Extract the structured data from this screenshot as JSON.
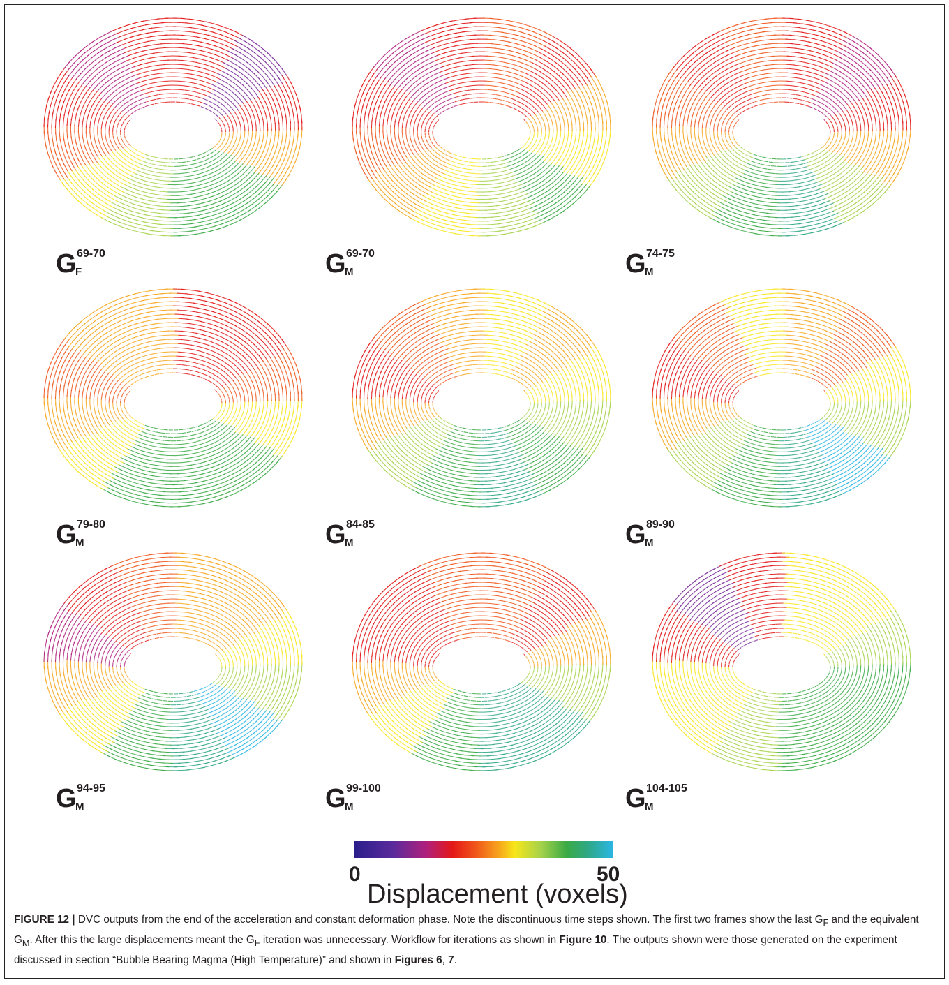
{
  "panels": [
    {
      "main": "G",
      "sub": "F",
      "sup": "69-70",
      "colors": [
        "#e41818",
        "#7a2a9a",
        "#e41818",
        "#f7a61c",
        "#3aaa45",
        "#3aaa45",
        "#a6d24a",
        "#f7e61a",
        "#f0561a",
        "#e41818",
        "#b0207c",
        "#e41818"
      ]
    },
    {
      "main": "G",
      "sub": "M",
      "sup": "69-70",
      "colors": [
        "#f0561a",
        "#e41818",
        "#f7a61c",
        "#f7e61a",
        "#3aaa45",
        "#a6d24a",
        "#f7e61a",
        "#f7a61c",
        "#f0561a",
        "#e41818",
        "#b0207c",
        "#e41818"
      ]
    },
    {
      "main": "G",
      "sub": "M",
      "sup": "74-75",
      "colors": [
        "#e41818",
        "#b0207c",
        "#e41818",
        "#f7a61c",
        "#a6d24a",
        "#2fa884",
        "#3aaa45",
        "#a6d24a",
        "#f7a61c",
        "#f0561a",
        "#e41818",
        "#f0561a"
      ]
    },
    {
      "main": "G",
      "sub": "M",
      "sup": "79-80",
      "colors": [
        "#e41818",
        "#e41818",
        "#f0561a",
        "#f7e61a",
        "#3aaa45",
        "#3aaa45",
        "#3aaa45",
        "#f7e61a",
        "#f7a61c",
        "#f0561a",
        "#f7a61c",
        "#f7a61c"
      ]
    },
    {
      "main": "G",
      "sub": "M",
      "sup": "84-85",
      "colors": [
        "#f7e61a",
        "#f7a61c",
        "#f7e61a",
        "#a6d24a",
        "#3aaa45",
        "#2fa884",
        "#3aaa45",
        "#a6d24a",
        "#f7a61c",
        "#e41818",
        "#f0561a",
        "#f7a61c"
      ]
    },
    {
      "main": "G",
      "sub": "M",
      "sup": "89-90",
      "colors": [
        "#f7a61c",
        "#f0561a",
        "#f7e61a",
        "#a6d24a",
        "#2ab6e6",
        "#2fa884",
        "#3aaa45",
        "#a6d24a",
        "#f7a61c",
        "#e41818",
        "#f0561a",
        "#f7e61a"
      ]
    },
    {
      "main": "G",
      "sub": "M",
      "sup": "94-95",
      "colors": [
        "#f7a61c",
        "#f7a61c",
        "#f7e61a",
        "#a6d24a",
        "#2ab6e6",
        "#2fa884",
        "#3aaa45",
        "#f7e61a",
        "#f7a61c",
        "#b0207c",
        "#e41818",
        "#f0561a"
      ]
    },
    {
      "main": "G",
      "sub": "M",
      "sup": "99-100",
      "colors": [
        "#f0561a",
        "#e41818",
        "#f7a61c",
        "#a6d24a",
        "#2fa884",
        "#2fa884",
        "#3aaa45",
        "#f7e61a",
        "#f7a61c",
        "#e41818",
        "#e41818",
        "#f0561a"
      ]
    },
    {
      "main": "G",
      "sub": "M",
      "sup": "104-105",
      "colors": [
        "#f7e61a",
        "#f7e61a",
        "#a6d24a",
        "#3aaa45",
        "#3aaa45",
        "#3aaa45",
        "#a6d24a",
        "#f7e61a",
        "#f7e61a",
        "#e41818",
        "#7a2a9a",
        "#e41818"
      ]
    }
  ],
  "colorbar": {
    "min_label": "0",
    "max_label": "50",
    "title": "Displacement (voxels)",
    "stops": [
      "#2a1e8a",
      "#5a2a9c",
      "#b0207c",
      "#e41818",
      "#f0561a",
      "#f7a61c",
      "#f7e61a",
      "#a6d24a",
      "#3aaa45",
      "#2fa884",
      "#2ab6e6"
    ],
    "range": [
      0,
      50
    ]
  },
  "caption": {
    "label": "FIGURE 12 |",
    "text_1": " DVC outputs from the end of the acceleration and constant deformation phase. Note the discontinuous time steps shown. The first two frames show the last G",
    "sub_f_1": "F",
    "text_2": " and the equivalent G",
    "sub_m_1": "M",
    "text_3": ". After this the large displacements meant the G",
    "sub_f_2": "F",
    "text_4": " iteration was unnecessary. Workflow for iterations as shown in ",
    "ref_fig10": "Figure 10",
    "text_5": ". The outputs shown were those generated on the experiment discussed in section “Bubble Bearing Magma (High Temperature)” and shown in ",
    "ref_figs": "Figures 6",
    "text_6": ", ",
    "ref_fig7": "7",
    "text_7": "."
  }
}
